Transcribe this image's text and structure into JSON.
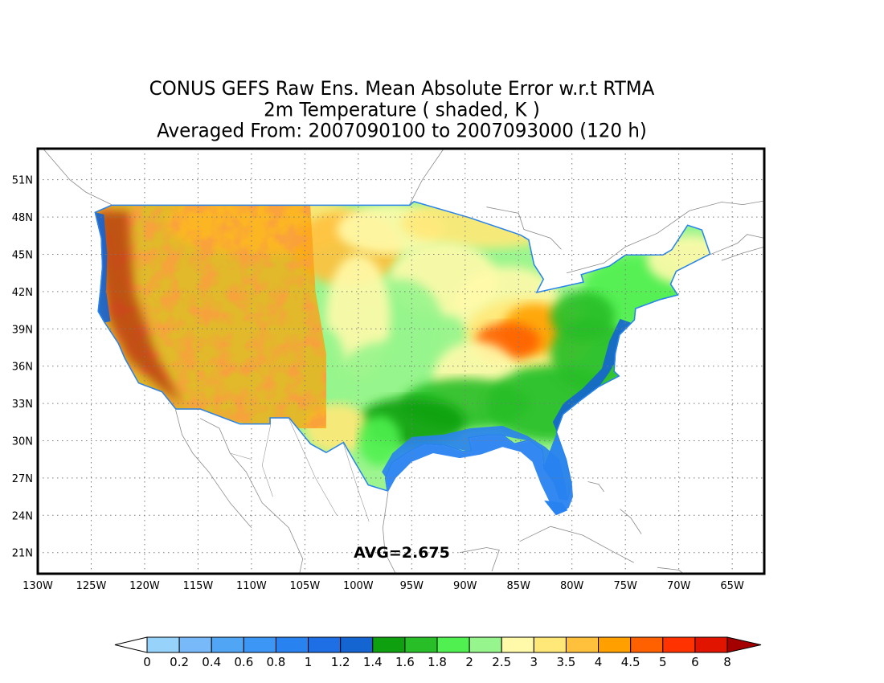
{
  "title": {
    "line1": "CONUS GEFS Raw Ens. Mean Absolute Error w.r.t RTMA",
    "line2": "2m Temperature ( shaded, K )",
    "line3": "Averaged From: 2007090100 to 2007093000 (120 h)"
  },
  "map": {
    "lon_range": [
      -130,
      -62
    ],
    "lat_range": [
      19.3,
      53.5
    ],
    "lat_ticks": [
      {
        "value": 51,
        "label": "51N"
      },
      {
        "value": 48,
        "label": "48N"
      },
      {
        "value": 45,
        "label": "45N"
      },
      {
        "value": 42,
        "label": "42N"
      },
      {
        "value": 39,
        "label": "39N"
      },
      {
        "value": 36,
        "label": "36N"
      },
      {
        "value": 33,
        "label": "33N"
      },
      {
        "value": 30,
        "label": "30N"
      },
      {
        "value": 27,
        "label": "27N"
      },
      {
        "value": 24,
        "label": "24N"
      },
      {
        "value": 21,
        "label": "21N"
      }
    ],
    "lon_ticks": [
      {
        "value": -130,
        "label": "130W"
      },
      {
        "value": -125,
        "label": "125W"
      },
      {
        "value": -120,
        "label": "120W"
      },
      {
        "value": -115,
        "label": "115W"
      },
      {
        "value": -110,
        "label": "110W"
      },
      {
        "value": -105,
        "label": "105W"
      },
      {
        "value": -100,
        "label": "100W"
      },
      {
        "value": -95,
        "label": "95W"
      },
      {
        "value": -90,
        "label": "90W"
      },
      {
        "value": -85,
        "label": "85W"
      },
      {
        "value": -80,
        "label": "80W"
      },
      {
        "value": -75,
        "label": "75W"
      },
      {
        "value": -70,
        "label": "70W"
      },
      {
        "value": -65,
        "label": "65W"
      }
    ],
    "grid": "dotted",
    "avg_label": "AVG=2.675"
  },
  "colorbar": {
    "labels": [
      "0",
      "0.2",
      "0.4",
      "0.6",
      "0.8",
      "1",
      "1.2",
      "1.4",
      "1.6",
      "1.8",
      "2",
      "2.5",
      "3",
      "3.5",
      "4",
      "4.5",
      "5",
      "6",
      "8"
    ],
    "colors": [
      "#ffffff",
      "#96d2fa",
      "#78b9fa",
      "#50a5f5",
      "#3c96f5",
      "#2882f0",
      "#1e6ee6",
      "#1464d2",
      "#0fa00f",
      "#28be28",
      "#50f050",
      "#96f58c",
      "#fffaaa",
      "#ffe878",
      "#ffc03c",
      "#ffa000",
      "#ff6000",
      "#ff3200",
      "#e11400",
      "#a50000"
    ]
  }
}
